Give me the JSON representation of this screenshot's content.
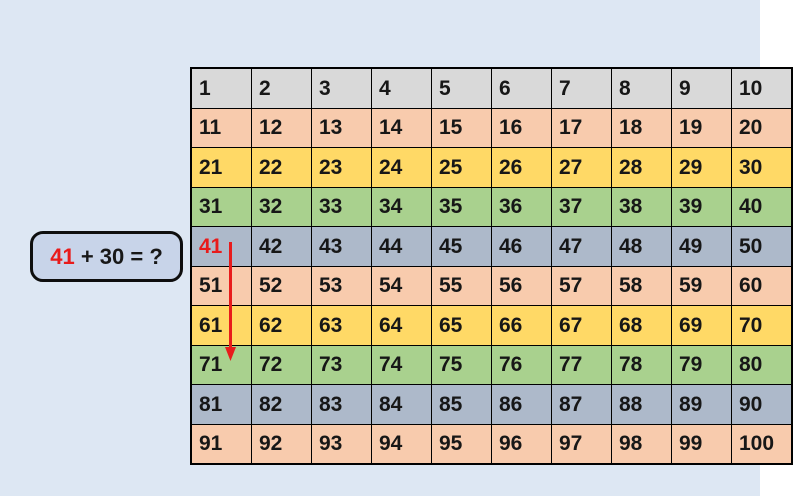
{
  "slide": {
    "background_color": "#dde7f3"
  },
  "equation": {
    "highlight": "41",
    "rest": " + 30 = ?",
    "highlight_color": "#e81b1b",
    "text_color": "#181818",
    "box_fill": "#c8d4e9",
    "box_border_color": "#0e0e0e"
  },
  "chart": {
    "type": "hundreds-chart-table",
    "rows": [
      [
        1,
        2,
        3,
        4,
        5,
        6,
        7,
        8,
        9,
        10
      ],
      [
        11,
        12,
        13,
        14,
        15,
        16,
        17,
        18,
        19,
        20
      ],
      [
        21,
        22,
        23,
        24,
        25,
        26,
        27,
        28,
        29,
        30
      ],
      [
        31,
        32,
        33,
        34,
        35,
        36,
        37,
        38,
        39,
        40
      ],
      [
        41,
        42,
        43,
        44,
        45,
        46,
        47,
        48,
        49,
        50
      ],
      [
        51,
        52,
        53,
        54,
        55,
        56,
        57,
        58,
        59,
        60
      ],
      [
        61,
        62,
        63,
        64,
        65,
        66,
        67,
        68,
        69,
        70
      ],
      [
        71,
        72,
        73,
        74,
        75,
        76,
        77,
        78,
        79,
        80
      ],
      [
        81,
        82,
        83,
        84,
        85,
        86,
        87,
        88,
        89,
        90
      ],
      [
        91,
        92,
        93,
        94,
        95,
        96,
        97,
        98,
        99,
        100
      ]
    ],
    "row_colors": [
      "#d9d9d9",
      "#f8cbad",
      "#ffd966",
      "#a9d18e",
      "#adb9ca",
      "#f8cbad",
      "#ffd966",
      "#a9d18e",
      "#adb9ca",
      "#f8cbad"
    ],
    "highlight_cell": {
      "value": 41,
      "text_color": "#e81b1b"
    },
    "arrow": {
      "from_value": 41,
      "to_value": 71,
      "color": "#e81b1b"
    }
  }
}
